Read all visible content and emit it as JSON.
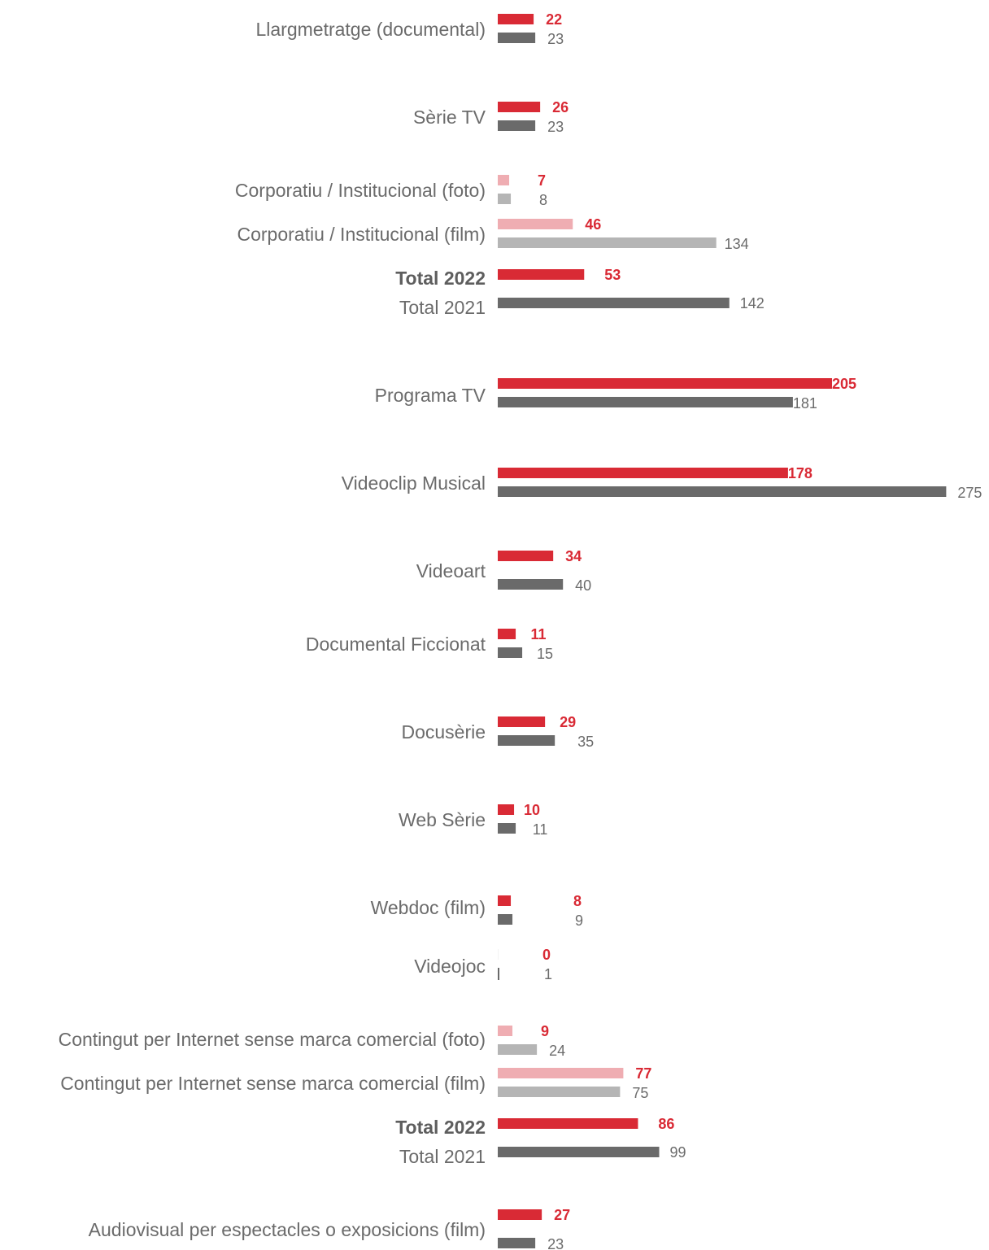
{
  "chart_data": {
    "type": "bar",
    "orientation": "horizontal",
    "colors": {
      "current": "#d92a35",
      "previous": "#6a6a6a",
      "current_light": "#efadb2",
      "previous_light": "#b5b5b5"
    },
    "rows": [
      {
        "label": "Llargmetratge (documental)",
        "v2022": 22,
        "v2021": 23
      },
      {
        "label": "Sèrie TV",
        "v2022": 26,
        "v2021": 23
      },
      {
        "label": "Corporatiu / Institucional (foto)",
        "v2022": 7,
        "v2021": 8,
        "light": true
      },
      {
        "label": "Corporatiu / Institucional (film)",
        "v2022": 46,
        "v2021": 134,
        "light": true
      },
      {
        "label": "Total 2022",
        "v2022": 53,
        "total": "2022"
      },
      {
        "label": "Total 2021",
        "v2021": 142,
        "total": "2021"
      },
      {
        "label": "Programa TV",
        "v2022": 205,
        "v2021": 181
      },
      {
        "label": "Videoclip Musical",
        "v2022": 178,
        "v2021": 275
      },
      {
        "label": "Videoart",
        "v2022": 34,
        "v2021": 40
      },
      {
        "label": "Documental Ficcionat",
        "v2022": 11,
        "v2021": 15
      },
      {
        "label": "Docusèrie",
        "v2022": 29,
        "v2021": 35
      },
      {
        "label": "Web Sèrie",
        "v2022": 10,
        "v2021": 11
      },
      {
        "label": "Webdoc (film)",
        "v2022": 8,
        "v2021": 9
      },
      {
        "label": "Videojoc",
        "v2022": 0,
        "v2021": 1
      },
      {
        "label": "Contingut per Internet sense marca comercial (foto)",
        "v2022": 9,
        "v2021": 24,
        "light": true
      },
      {
        "label": "Contingut per Internet sense marca comercial (film)",
        "v2022": 77,
        "v2021": 75,
        "light": true
      },
      {
        "label": "Total 2022",
        "v2022": 86,
        "total": "2022"
      },
      {
        "label": "Total 2021",
        "v2021": 99,
        "total": "2021"
      },
      {
        "label": "Audiovisual per espectacles o exposicions (film)",
        "v2022": 27,
        "v2021": 23
      }
    ]
  }
}
